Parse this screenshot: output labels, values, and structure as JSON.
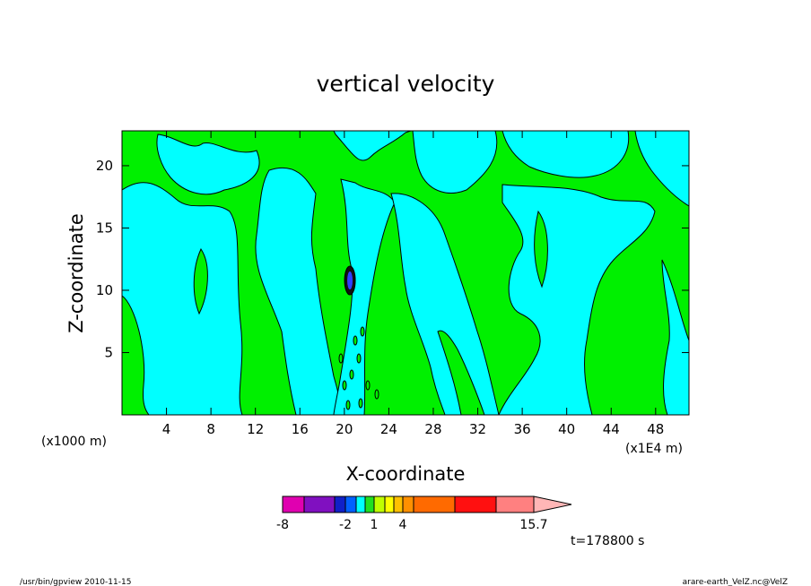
{
  "chart_data": {
    "type": "heatmap",
    "title": "vertical velocity",
    "xlabel": "X-coordinate",
    "ylabel": "Z-coordinate",
    "x_unit_label": "(x1E4 m)",
    "y_unit_label": "(x1000 m)",
    "xlim": [
      0,
      51
    ],
    "ylim": [
      0,
      22.8
    ],
    "x_ticks": [
      4,
      8,
      12,
      16,
      20,
      24,
      28,
      32,
      36,
      40,
      44,
      48
    ],
    "y_ticks": [
      5,
      10,
      15,
      20
    ],
    "grid": false,
    "colorbar": {
      "tick_labels": [
        "-8",
        "-2",
        "1",
        "4",
        "15.7"
      ],
      "tick_values": [
        -8,
        -2,
        1,
        4,
        15.7
      ],
      "colors": [
        "#e000b0",
        "#8010c0",
        "#1020c8",
        "#0060ff",
        "#00ffff",
        "#20e020",
        "#c0ff00",
        "#ffff00",
        "#ffc000",
        "#ff9000",
        "#ff6a00",
        "#ff1010",
        "#ff8080",
        "#ffb6b6"
      ]
    },
    "dominant_levels": [
      {
        "name": "negative",
        "color": "#00ffff"
      },
      {
        "name": "positive",
        "color": "#00f000"
      }
    ],
    "core": {
      "x": 20.5,
      "z": 10.5
    }
  },
  "time_label": "t=178800 s",
  "footer_left": "/usr/bin/gpview  2010-11-15",
  "footer_right": "arare-earth_VelZ.nc@VelZ"
}
